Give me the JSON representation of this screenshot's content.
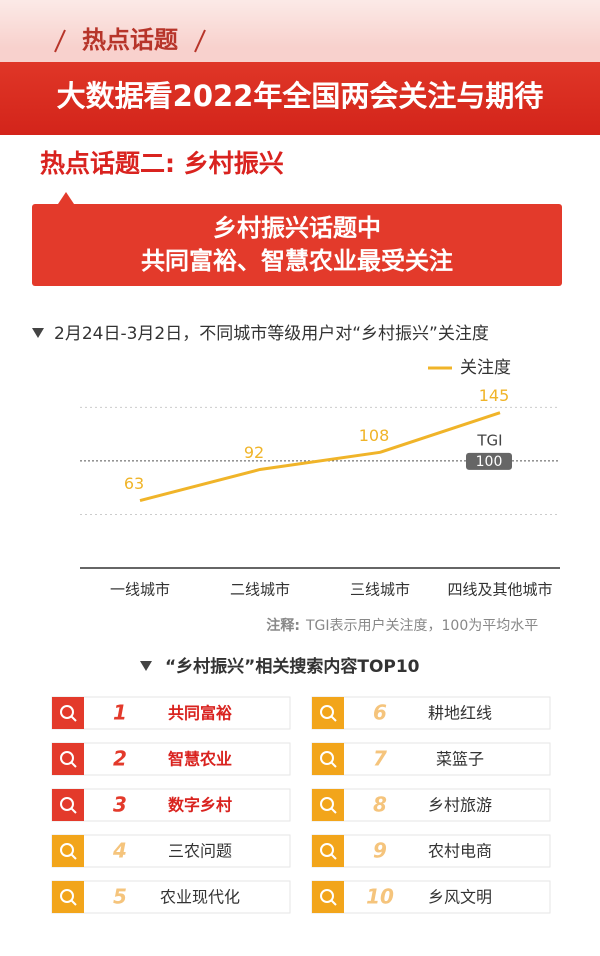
{
  "header": {
    "tag": "热点话题",
    "title": "大数据看2022年全国两会关注与期待"
  },
  "section_title": "热点话题二: 乡村振兴",
  "banner": [
    "乡村振兴话题中",
    "共同富裕、智慧农业最受关注"
  ],
  "chart_data": {
    "type": "line",
    "title": "2月24日-3月2日，不同城市等级用户对“乡村振兴”关注度",
    "categories": [
      "一线城市",
      "二线城市",
      "三线城市",
      "四线及其他城市"
    ],
    "series": [
      {
        "name": "关注度",
        "color": "#f0b429",
        "values": [
          63,
          92,
          108,
          145
        ]
      }
    ],
    "ylim": [
      0,
      155
    ],
    "yticks": [
      50,
      150
    ],
    "grid": true,
    "reference": {
      "value": 100,
      "label": "TGI"
    },
    "note_label": "注释:",
    "note": "TGI表示用户关注度，100为平均水平"
  },
  "search": {
    "title": "“乡村振兴”相关搜索内容TOP10",
    "items": [
      {
        "rank": 1,
        "text": "共同富裕"
      },
      {
        "rank": 2,
        "text": "智慧农业"
      },
      {
        "rank": 3,
        "text": "数字乡村"
      },
      {
        "rank": 4,
        "text": "三农问题"
      },
      {
        "rank": 5,
        "text": "农业现代化"
      },
      {
        "rank": 6,
        "text": "耕地红线"
      },
      {
        "rank": 7,
        "text": "菜篮子"
      },
      {
        "rank": 8,
        "text": "乡村旅游"
      },
      {
        "rank": 9,
        "text": "农村电商"
      },
      {
        "rank": 10,
        "text": "乡风文明"
      }
    ]
  }
}
